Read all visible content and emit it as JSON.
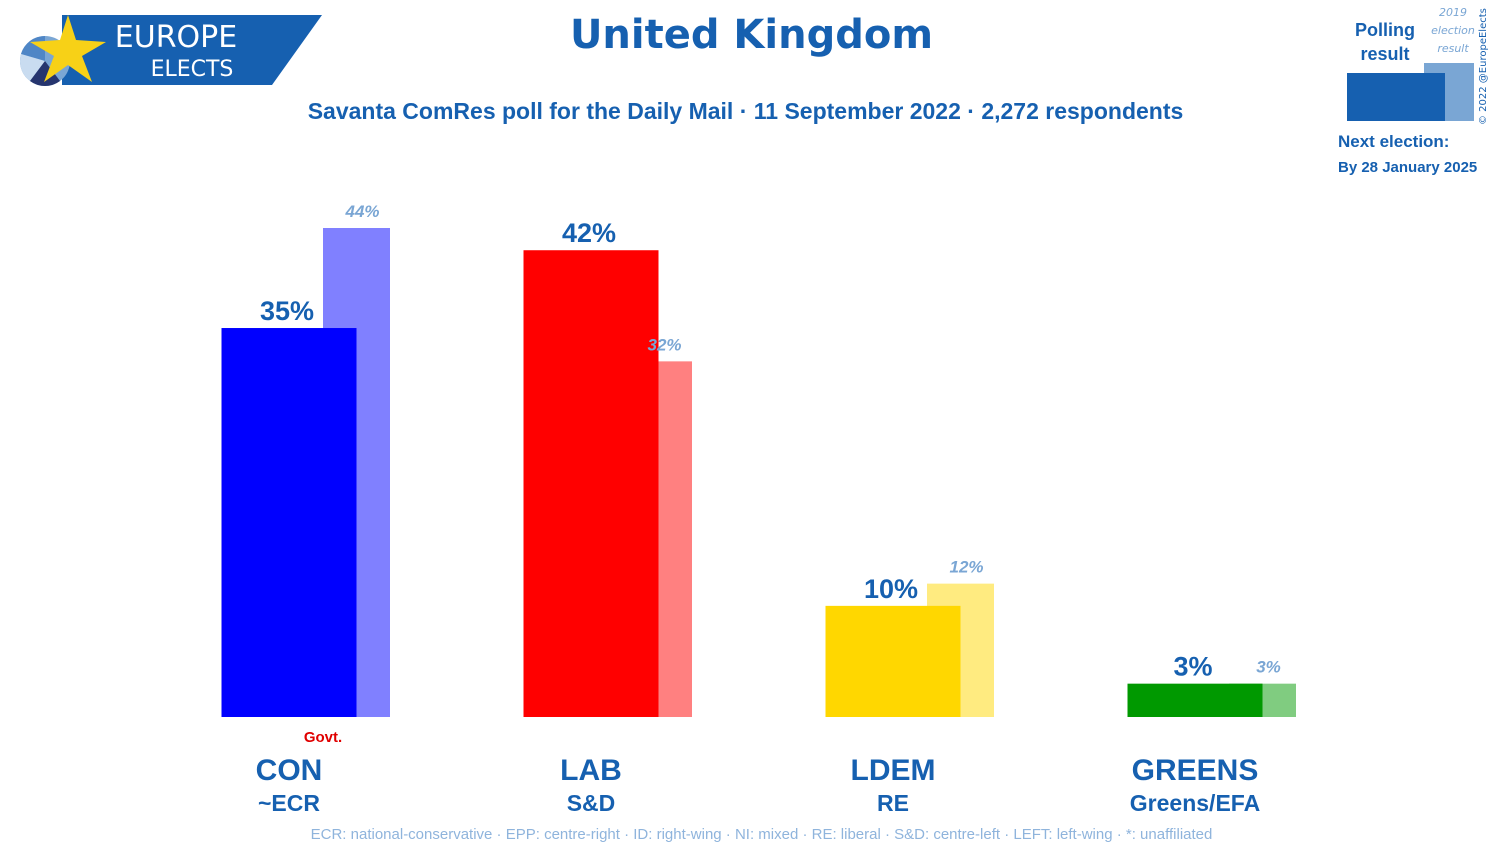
{
  "brand": {
    "line1": "EUROPE",
    "line2": "ELECTS",
    "bg_color": "#1660b0",
    "star_color": "#f7d117"
  },
  "header": {
    "title": "United Kingdom",
    "subtitle": "Savanta ComRes poll for the Daily Mail · 11 September 2022 · 2,272 respondents"
  },
  "legend": {
    "polling_label": [
      "Polling",
      "result"
    ],
    "election_label": [
      "2019",
      "election",
      "result"
    ],
    "next_election_label": "Next election:",
    "next_election_date": "By 28 January 2025",
    "copyright": "© 2022 @EuropeElects"
  },
  "chart_data": {
    "type": "bar",
    "categories": [
      "CON",
      "LAB",
      "LDEM",
      "GREENS"
    ],
    "groups": [
      "~ECR",
      "S&D",
      "RE",
      "Greens/EFA"
    ],
    "series": [
      {
        "name": "Polling result",
        "values": [
          35,
          42,
          10,
          3
        ],
        "labels": [
          "35%",
          "42%",
          "10%",
          "3%"
        ]
      },
      {
        "name": "2019 election result",
        "values": [
          44,
          32,
          12,
          3
        ],
        "labels": [
          "44%",
          "32%",
          "12%",
          "3%"
        ]
      }
    ],
    "colors": [
      "#0000ff",
      "#ff0000",
      "#ffd700",
      "#009900"
    ],
    "previous_colors": [
      "#8080ff",
      "#ff8080",
      "#ffeb80",
      "#80cc80"
    ],
    "government_marker": {
      "party": "CON",
      "text": "Govt."
    },
    "ylim": [
      0,
      44
    ],
    "grid": false
  },
  "footnote": "ECR: national-conservative · EPP: centre-right · ID: right-wing · NI: mixed · RE: liberal · S&D: centre-left · LEFT: left-wing · *: unaffiliated"
}
